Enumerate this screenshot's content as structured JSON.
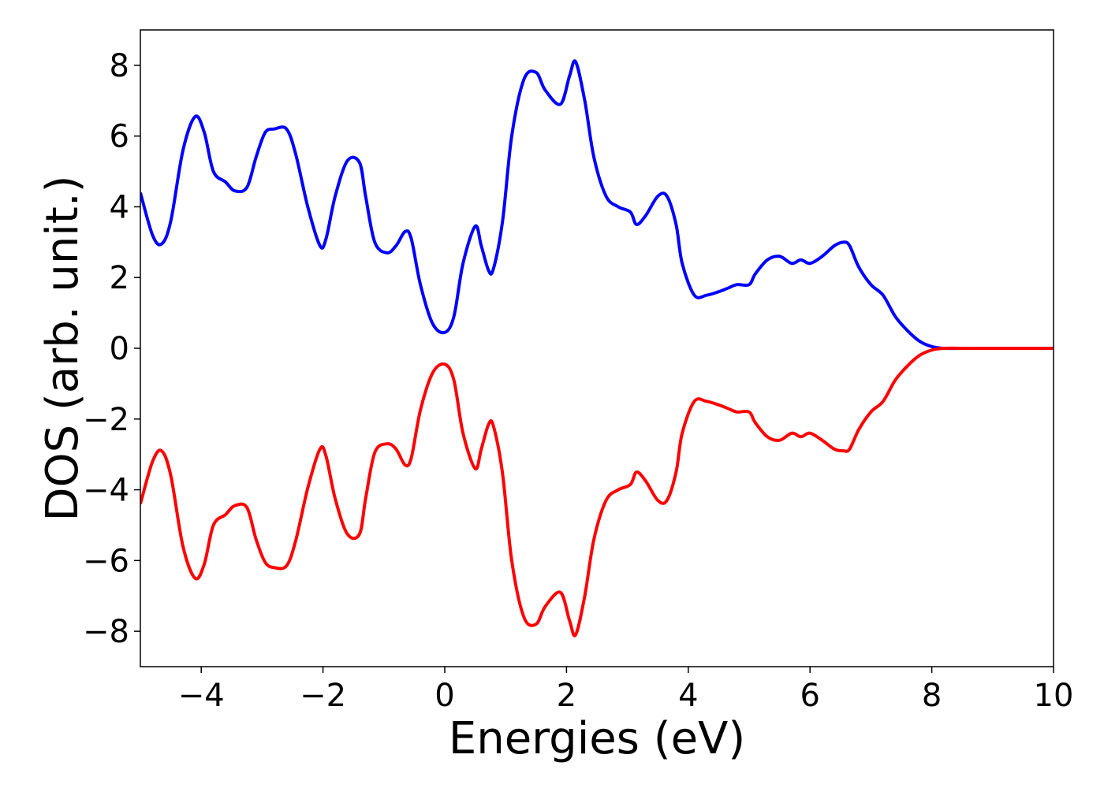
{
  "chart_data": {
    "type": "line",
    "xlabel": "Energies (eV)",
    "ylabel": "DOS (arb. unit.)",
    "xlim": [
      -5,
      10
    ],
    "ylim": [
      -9,
      9
    ],
    "xticks": [
      -4,
      -2,
      0,
      2,
      4,
      6,
      8,
      10
    ],
    "yticks": [
      -8,
      -6,
      -4,
      -2,
      0,
      2,
      4,
      6,
      8
    ],
    "xtick_labels": [
      "−4",
      "−2",
      "0",
      "2",
      "4",
      "6",
      "8",
      "10"
    ],
    "ytick_labels": [
      "−8",
      "−6",
      "−4",
      "−2",
      "0",
      "2",
      "4",
      "6",
      "8"
    ],
    "grid": false,
    "series": [
      {
        "color": "#0000ff",
        "x": [
          -5.0,
          -4.8,
          -4.65,
          -4.5,
          -4.3,
          -4.1,
          -3.95,
          -3.8,
          -3.6,
          -3.45,
          -3.25,
          -3.1,
          -2.95,
          -2.8,
          -2.6,
          -2.45,
          -2.25,
          -2.05,
          -1.95,
          -1.8,
          -1.6,
          -1.4,
          -1.3,
          -1.15,
          -0.95,
          -0.8,
          -0.65,
          -0.55,
          -0.4,
          -0.2,
          0.0,
          0.15,
          0.3,
          0.5,
          0.6,
          0.72,
          0.8,
          0.95,
          1.1,
          1.3,
          1.5,
          1.65,
          1.9,
          2.05,
          2.15,
          2.3,
          2.45,
          2.65,
          2.85,
          3.05,
          3.15,
          3.3,
          3.5,
          3.65,
          3.8,
          3.9,
          4.1,
          4.3,
          4.5,
          4.65,
          4.8,
          5.0,
          5.1,
          5.3,
          5.5,
          5.7,
          5.85,
          6.0,
          6.2,
          6.4,
          6.55,
          6.65,
          6.8,
          7.0,
          7.2,
          7.4,
          7.6,
          7.8,
          8.0,
          8.2,
          8.5,
          9.0,
          10.0
        ],
        "y": [
          4.4,
          3.2,
          2.95,
          3.6,
          5.6,
          6.55,
          6.1,
          5.0,
          4.7,
          4.45,
          4.55,
          5.4,
          6.1,
          6.2,
          6.2,
          5.5,
          4.0,
          2.9,
          3.1,
          4.3,
          5.3,
          5.25,
          4.3,
          3.0,
          2.7,
          2.9,
          3.3,
          3.1,
          1.8,
          0.7,
          0.45,
          0.9,
          2.4,
          3.45,
          2.9,
          2.2,
          2.25,
          3.6,
          6.0,
          7.6,
          7.8,
          7.3,
          6.9,
          7.7,
          8.1,
          7.0,
          5.4,
          4.3,
          4.0,
          3.85,
          3.5,
          3.75,
          4.3,
          4.3,
          3.5,
          2.4,
          1.5,
          1.5,
          1.6,
          1.7,
          1.8,
          1.8,
          2.1,
          2.5,
          2.6,
          2.4,
          2.5,
          2.4,
          2.6,
          2.9,
          3.0,
          2.9,
          2.3,
          1.8,
          1.5,
          0.9,
          0.5,
          0.2,
          0.05,
          0.0,
          0.0,
          0.0,
          0.0
        ]
      },
      {
        "color": "#ff0000",
        "x": [
          -5.0,
          -4.8,
          -4.65,
          -4.5,
          -4.3,
          -4.1,
          -3.95,
          -3.8,
          -3.6,
          -3.45,
          -3.25,
          -3.1,
          -2.95,
          -2.8,
          -2.6,
          -2.45,
          -2.25,
          -2.05,
          -1.95,
          -1.8,
          -1.6,
          -1.4,
          -1.3,
          -1.15,
          -0.95,
          -0.8,
          -0.65,
          -0.55,
          -0.4,
          -0.2,
          0.0,
          0.15,
          0.3,
          0.5,
          0.6,
          0.72,
          0.8,
          0.95,
          1.1,
          1.3,
          1.5,
          1.65,
          1.9,
          2.05,
          2.15,
          2.3,
          2.45,
          2.65,
          2.85,
          3.05,
          3.15,
          3.3,
          3.5,
          3.65,
          3.8,
          3.9,
          4.1,
          4.3,
          4.5,
          4.65,
          4.8,
          5.0,
          5.1,
          5.3,
          5.5,
          5.7,
          5.85,
          6.0,
          6.2,
          6.4,
          6.55,
          6.65,
          6.8,
          7.0,
          7.2,
          7.4,
          7.6,
          7.8,
          8.0,
          8.2,
          8.5,
          9.0,
          10.0
        ],
        "y": [
          -4.4,
          -3.2,
          -2.9,
          -3.6,
          -5.6,
          -6.5,
          -6.1,
          -5.0,
          -4.7,
          -4.45,
          -4.5,
          -5.4,
          -6.05,
          -6.2,
          -6.15,
          -5.45,
          -3.95,
          -2.85,
          -3.05,
          -4.25,
          -5.25,
          -5.25,
          -4.25,
          -2.95,
          -2.7,
          -2.85,
          -3.3,
          -3.1,
          -1.75,
          -0.7,
          -0.45,
          -0.9,
          -2.4,
          -3.4,
          -2.85,
          -2.15,
          -2.2,
          -3.55,
          -6.0,
          -7.6,
          -7.8,
          -7.3,
          -6.9,
          -7.7,
          -8.1,
          -7.0,
          -5.4,
          -4.3,
          -4.0,
          -3.85,
          -3.5,
          -3.75,
          -4.3,
          -4.3,
          -3.5,
          -2.4,
          -1.5,
          -1.5,
          -1.6,
          -1.7,
          -1.8,
          -1.8,
          -2.1,
          -2.5,
          -2.6,
          -2.4,
          -2.5,
          -2.4,
          -2.6,
          -2.85,
          -2.9,
          -2.85,
          -2.3,
          -1.8,
          -1.5,
          -0.9,
          -0.5,
          -0.2,
          -0.05,
          0.0,
          0.0,
          0.0,
          0.0
        ]
      }
    ]
  }
}
